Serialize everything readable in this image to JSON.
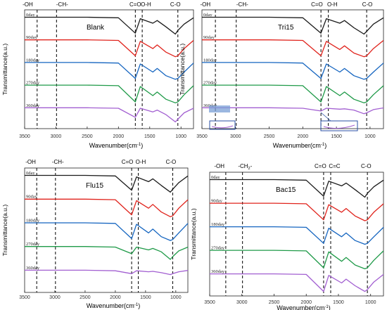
{
  "chart_data": [
    {
      "type": "line",
      "panel": "top-left",
      "title": "Blank",
      "xlabel": "Wavenumber",
      "xlabel_unit": "cm",
      "xlabel_sup": "-1",
      "ylabel": "Transmittance(a.u.)",
      "xlim": [
        3500,
        800
      ],
      "xticks": [
        3500,
        3000,
        2500,
        2000,
        1500,
        1000
      ],
      "series_labels": [
        "0day",
        "90day",
        "180day",
        "270day",
        "360day"
      ],
      "band_labels": [
        {
          "text": "-OH",
          "wn": 3450
        },
        {
          "text": "-CH-",
          "wn": 2900
        },
        {
          "text": "C=O",
          "wn": 1730
        },
        {
          "text": "O-H",
          "wn": 1560
        },
        {
          "text": "C-O",
          "wn": 1090
        }
      ],
      "dashed_lines": [
        3300,
        2990,
        1730,
        1620,
        1050
      ],
      "grid": false,
      "legend": "none",
      "series": [
        {
          "values": [
            0.02,
            0.02,
            0.02,
            0.05,
            0.9,
            0.1,
            0.35,
            0.2,
            0.55,
            0.95,
            0.75,
            0.4,
            0.05
          ]
        },
        {
          "values": [
            0.02,
            0.02,
            0.02,
            0.05,
            0.9,
            0.1,
            0.5,
            0.3,
            0.7,
            0.95,
            0.9,
            0.5,
            0.05
          ]
        },
        {
          "values": [
            0.02,
            0.02,
            0.02,
            0.05,
            0.9,
            0.1,
            0.55,
            0.35,
            0.75,
            0.95,
            0.9,
            0.55,
            0.05
          ]
        },
        {
          "values": [
            0.02,
            0.02,
            0.02,
            0.05,
            0.95,
            0.1,
            0.6,
            0.4,
            0.8,
            1.0,
            0.95,
            0.55,
            0.05
          ]
        },
        {
          "values": [
            0.02,
            0.02,
            0.02,
            0.05,
            0.55,
            0.05,
            0.25,
            0.15,
            0.4,
            0.8,
            0.65,
            0.3,
            0.05
          ]
        }
      ]
    },
    {
      "type": "line",
      "panel": "top-right",
      "title": "Tri15",
      "xlabel": "Wavenumber",
      "xlabel_unit": "cm",
      "xlabel_sup": "-1",
      "ylabel": "Transmittance(a.u.)",
      "xlim": [
        3500,
        800
      ],
      "xticks": [
        3500,
        3000,
        2500,
        2000,
        1500,
        1000
      ],
      "series_labels": [
        "0day",
        "90day",
        "180day",
        "270day",
        "360day"
      ],
      "band_labels": [
        {
          "text": "-OH",
          "wn": 3450
        },
        {
          "text": "-CH-",
          "wn": 2900
        },
        {
          "text": "C=O",
          "wn": 1790
        },
        {
          "text": "O-H",
          "wn": 1560
        },
        {
          "text": "C-O",
          "wn": 1040
        }
      ],
      "dashed_lines": [
        3300,
        2990,
        1730,
        1620,
        1050
      ],
      "grid": false,
      "legend": "none",
      "series": [
        {
          "values": [
            0.02,
            0.02,
            0.02,
            0.05,
            0.9,
            0.1,
            0.35,
            0.2,
            0.6,
            0.95,
            0.8,
            0.4,
            0.05
          ]
        },
        {
          "values": [
            0.02,
            0.02,
            0.02,
            0.05,
            0.9,
            0.1,
            0.55,
            0.35,
            0.75,
            0.95,
            0.9,
            0.5,
            0.05
          ]
        },
        {
          "values": [
            0.02,
            0.02,
            0.02,
            0.05,
            0.9,
            0.1,
            0.55,
            0.35,
            0.75,
            0.95,
            0.9,
            0.55,
            0.05
          ]
        },
        {
          "values": [
            0.02,
            0.02,
            0.02,
            0.05,
            0.95,
            0.1,
            0.6,
            0.4,
            0.8,
            1.0,
            0.95,
            0.55,
            0.05
          ]
        },
        {
          "values": [
            0.02,
            0.02,
            0.02,
            0.05,
            0.2,
            0.05,
            0.1,
            0.08,
            0.15,
            0.35,
            0.3,
            0.12,
            0.03
          ]
        }
      ]
    },
    {
      "type": "line",
      "panel": "bottom-left",
      "title": "Flu15",
      "xlabel": "Wavenumber",
      "xlabel_unit": "cm",
      "xlabel_sup": "-1",
      "ylabel": "Transmittance(a.u.)",
      "xlim": [
        3500,
        800
      ],
      "xticks": [
        3500,
        3000,
        2500,
        2000,
        1500,
        1000
      ],
      "series_labels": [
        "0day",
        "90day",
        "180day",
        "270day",
        "360day"
      ],
      "band_labels": [
        {
          "text": "-OH",
          "wn": 3400
        },
        {
          "text": "-CH-",
          "wn": 2950
        },
        {
          "text": "C=O",
          "wn": 1800
        },
        {
          "text": "O-H",
          "wn": 1580
        },
        {
          "text": "C-O",
          "wn": 1080
        }
      ],
      "dashed_lines": [
        3300,
        2990,
        1730,
        1620,
        1050
      ],
      "grid": false,
      "legend": "none",
      "series": [
        {
          "values": [
            0.02,
            0.02,
            0.02,
            0.05,
            0.8,
            0.1,
            0.35,
            0.2,
            0.55,
            0.9,
            0.75,
            0.4,
            0.05
          ]
        },
        {
          "values": [
            0.02,
            0.02,
            0.02,
            0.05,
            0.85,
            0.1,
            0.5,
            0.3,
            0.7,
            0.95,
            0.9,
            0.5,
            0.05
          ]
        },
        {
          "values": [
            0.02,
            0.02,
            0.02,
            0.05,
            0.85,
            0.1,
            0.55,
            0.35,
            0.75,
            0.95,
            0.9,
            0.55,
            0.05
          ]
        },
        {
          "values": [
            0.02,
            0.02,
            0.02,
            0.05,
            0.4,
            0.05,
            0.2,
            0.12,
            0.3,
            0.7,
            0.55,
            0.25,
            0.05
          ]
        },
        {
          "values": [
            0.02,
            0.02,
            0.02,
            0.05,
            0.2,
            0.05,
            0.1,
            0.08,
            0.15,
            0.25,
            0.2,
            0.1,
            0.03
          ]
        }
      ]
    },
    {
      "type": "line",
      "panel": "bottom-right",
      "title": "Bac15",
      "xlabel": "Wavenumber",
      "xlabel_unit": "cm",
      "xlabel_sup": "-1",
      "ylabel": "Transmittance(a.u.)",
      "xlim": [
        3500,
        800
      ],
      "xticks": [
        3500,
        3000,
        2500,
        2000,
        1500,
        1000
      ],
      "series_labels": [
        "0day",
        "90day",
        "180day",
        "270day",
        "360day"
      ],
      "band_labels": [
        {
          "text": "-OH",
          "wn": 3350
        },
        {
          "text": "-CH",
          "sub": "2",
          "suffix": "-",
          "wn": 2950
        },
        {
          "text": "C=O",
          "wn": 1780
        },
        {
          "text": "C=C",
          "wn": 1560
        },
        {
          "text": "C-O",
          "wn": 1070
        }
      ],
      "dashed_lines": [
        3250,
        2990,
        1730,
        1620,
        1050
      ],
      "grid": false,
      "legend": "none",
      "series": [
        {
          "values": [
            0.02,
            0.02,
            0.02,
            0.05,
            0.9,
            0.1,
            0.35,
            0.2,
            0.55,
            0.95,
            0.75,
            0.4,
            0.05
          ]
        },
        {
          "values": [
            0.02,
            0.02,
            0.02,
            0.05,
            0.9,
            0.1,
            0.5,
            0.3,
            0.7,
            0.95,
            0.9,
            0.5,
            0.05
          ]
        },
        {
          "values": [
            0.02,
            0.02,
            0.02,
            0.05,
            0.9,
            0.1,
            0.55,
            0.35,
            0.75,
            0.95,
            0.9,
            0.55,
            0.05
          ]
        },
        {
          "values": [
            0.02,
            0.02,
            0.02,
            0.05,
            0.95,
            0.1,
            0.6,
            0.4,
            0.8,
            1.0,
            0.95,
            0.55,
            0.05
          ]
        },
        {
          "values": [
            0.02,
            0.02,
            0.02,
            0.05,
            0.95,
            0.1,
            0.5,
            0.3,
            0.65,
            0.95,
            0.85,
            0.45,
            0.05
          ]
        }
      ]
    }
  ],
  "series_colors": [
    "#1a1a1a",
    "#e0231c",
    "#1565c0",
    "#1f9a48",
    "#a25fd1"
  ],
  "spectrum_wavenumbers": [
    3500,
    3000,
    2500,
    2000,
    1730,
    1650,
    1450,
    1380,
    1240,
    1090,
    1050,
    950,
    800
  ]
}
